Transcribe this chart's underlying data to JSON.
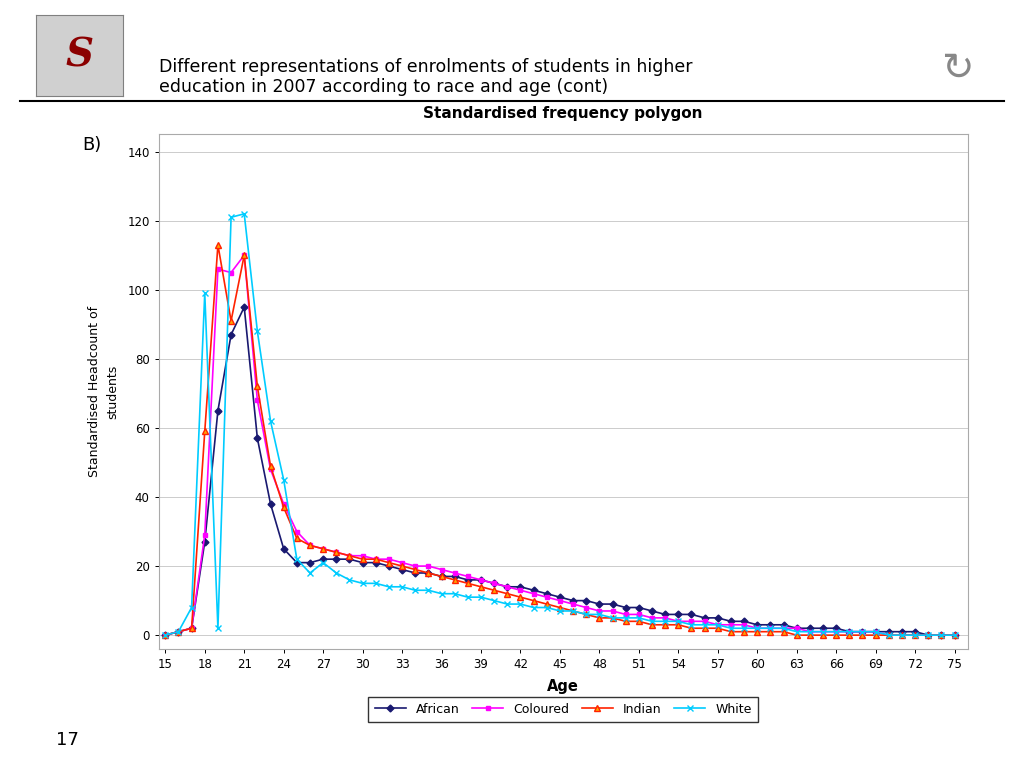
{
  "title": "Standardised frequency polygon",
  "xlabel": "Age",
  "ylabel": "Standardised Headcount of\nstudents",
  "chart_title_main": "Different representations of enrolments of students in higher\neducation in 2007 according to race and age (cont)",
  "panel_label": "B)",
  "page_number": "17",
  "ages": [
    15,
    16,
    17,
    18,
    19,
    20,
    21,
    22,
    23,
    24,
    25,
    26,
    27,
    28,
    29,
    30,
    31,
    32,
    33,
    34,
    35,
    36,
    37,
    38,
    39,
    40,
    41,
    42,
    43,
    44,
    45,
    46,
    47,
    48,
    49,
    50,
    51,
    52,
    53,
    54,
    55,
    56,
    57,
    58,
    59,
    60,
    61,
    62,
    63,
    64,
    65,
    66,
    67,
    68,
    69,
    70,
    71,
    72,
    73,
    74,
    75
  ],
  "african": [
    0,
    1,
    2,
    27,
    65,
    87,
    95,
    57,
    38,
    25,
    21,
    21,
    22,
    22,
    22,
    21,
    21,
    20,
    19,
    18,
    18,
    17,
    17,
    16,
    16,
    15,
    14,
    14,
    13,
    12,
    11,
    10,
    10,
    9,
    9,
    8,
    8,
    7,
    6,
    6,
    6,
    5,
    5,
    4,
    4,
    3,
    3,
    3,
    2,
    2,
    2,
    2,
    1,
    1,
    1,
    1,
    1,
    1,
    0,
    0,
    0
  ],
  "coloured": [
    0,
    1,
    2,
    29,
    106,
    105,
    110,
    68,
    48,
    38,
    30,
    26,
    25,
    24,
    23,
    23,
    22,
    22,
    21,
    20,
    20,
    19,
    18,
    17,
    16,
    15,
    14,
    13,
    12,
    11,
    10,
    9,
    8,
    7,
    7,
    6,
    6,
    5,
    5,
    4,
    4,
    4,
    3,
    3,
    3,
    2,
    2,
    2,
    2,
    1,
    1,
    1,
    1,
    1,
    1,
    0,
    0,
    0,
    0,
    0,
    0
  ],
  "indian": [
    0,
    1,
    2,
    59,
    113,
    91,
    110,
    72,
    49,
    37,
    28,
    26,
    25,
    24,
    23,
    22,
    22,
    21,
    20,
    19,
    18,
    17,
    16,
    15,
    14,
    13,
    12,
    11,
    10,
    9,
    8,
    7,
    6,
    5,
    5,
    4,
    4,
    3,
    3,
    3,
    2,
    2,
    2,
    1,
    1,
    1,
    1,
    1,
    0,
    0,
    0,
    0,
    0,
    0,
    0,
    0,
    0,
    0,
    0,
    0,
    0
  ],
  "white": [
    0,
    1,
    8,
    99,
    2,
    121,
    122,
    88,
    62,
    45,
    22,
    18,
    21,
    18,
    16,
    15,
    15,
    14,
    14,
    13,
    13,
    12,
    12,
    11,
    11,
    10,
    9,
    9,
    8,
    8,
    7,
    7,
    6,
    6,
    5,
    5,
    5,
    4,
    4,
    4,
    3,
    3,
    3,
    2,
    2,
    2,
    2,
    2,
    1,
    1,
    1,
    1,
    1,
    1,
    1,
    0,
    0,
    0,
    0,
    0,
    0
  ],
  "african_color": "#191970",
  "coloured_color": "#FF00FF",
  "indian_color": "#FF2200",
  "white_color": "#00CCFF",
  "xtick_labels": [
    "15",
    "18",
    "21",
    "24",
    "27",
    "30",
    "33",
    "36",
    "39",
    "42",
    "45",
    "48",
    "51",
    "54",
    "57",
    "60",
    "63",
    "66",
    "69",
    "72",
    "75"
  ],
  "xtick_positions": [
    15,
    18,
    21,
    24,
    27,
    30,
    33,
    36,
    39,
    42,
    45,
    48,
    51,
    54,
    57,
    60,
    63,
    66,
    69,
    72,
    75
  ],
  "ytick_labels": [
    "0",
    "20",
    "40",
    "60",
    "80",
    "100",
    "120",
    "140"
  ],
  "ytick_positions": [
    0,
    20,
    40,
    60,
    80,
    100,
    120,
    140
  ],
  "ylim": [
    -4,
    145
  ],
  "xlim": [
    14.5,
    76
  ]
}
